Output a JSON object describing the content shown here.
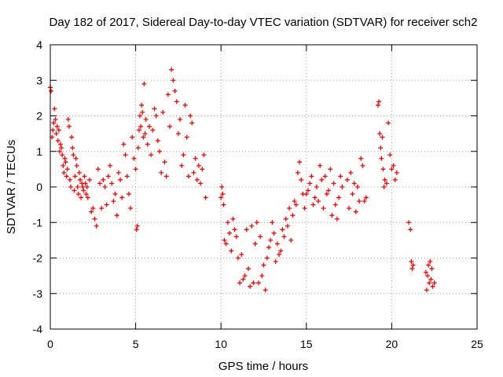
{
  "chart_data": {
    "type": "scatter",
    "title": "Day 182 of 2017, Sidereal Day-to-day VTEC variation (SDTVAR) for receiver sch2",
    "xlabel": "GPS time / hours",
    "ylabel": "SDTVAR / TECUs",
    "xlim": [
      0,
      25
    ],
    "ylim": [
      -4,
      4
    ],
    "x_ticks": [
      "0",
      "5",
      "10",
      "15",
      "20",
      "25"
    ],
    "y_ticks": [
      "4",
      "3",
      "2",
      "1",
      "0",
      "-1",
      "-2",
      "-3",
      "-4"
    ],
    "grid": true,
    "marker": "plus",
    "color": "#ff0000",
    "series": [
      {
        "name": "sch2",
        "x": [
          0.0,
          0.05,
          0.1,
          0.15,
          0.2,
          0.25,
          0.3,
          0.35,
          0.4,
          0.45,
          0.5,
          0.55,
          0.6,
          0.65,
          0.7,
          0.75,
          0.8,
          0.85,
          0.9,
          0.95,
          1.0,
          1.05,
          1.1,
          1.15,
          1.2,
          1.25,
          1.3,
          1.35,
          1.4,
          1.45,
          1.5,
          1.55,
          1.6,
          1.65,
          1.7,
          1.75,
          1.8,
          1.85,
          1.9,
          1.95,
          2.0,
          2.05,
          2.1,
          2.15,
          2.2,
          2.3,
          2.4,
          2.5,
          2.6,
          2.7,
          2.8,
          2.9,
          3.0,
          3.1,
          3.2,
          3.3,
          3.4,
          3.5,
          3.6,
          3.7,
          3.8,
          3.9,
          4.0,
          4.1,
          4.2,
          4.3,
          4.4,
          4.5,
          4.6,
          4.7,
          4.8,
          4.9,
          5.0,
          5.05,
          5.1,
          5.15,
          5.2,
          5.25,
          5.3,
          5.35,
          5.4,
          5.45,
          5.5,
          5.55,
          5.6,
          5.7,
          5.8,
          5.9,
          6.0,
          6.1,
          6.2,
          6.3,
          6.4,
          6.5,
          6.6,
          6.7,
          6.8,
          6.9,
          7.0,
          7.1,
          7.2,
          7.3,
          7.4,
          7.5,
          7.6,
          7.7,
          7.8,
          7.9,
          8.0,
          8.1,
          8.2,
          8.3,
          8.4,
          8.5,
          8.6,
          8.7,
          8.8,
          8.9,
          9.0,
          9.1,
          10.0,
          10.05,
          10.1,
          10.15,
          10.2,
          10.3,
          10.4,
          10.5,
          10.6,
          10.7,
          10.8,
          10.9,
          11.0,
          11.1,
          11.2,
          11.3,
          11.4,
          11.5,
          11.6,
          11.7,
          11.8,
          11.9,
          12.0,
          12.1,
          12.2,
          12.3,
          12.4,
          12.5,
          12.6,
          12.7,
          12.8,
          12.9,
          13.0,
          13.1,
          13.2,
          13.3,
          13.4,
          13.5,
          13.6,
          13.7,
          13.8,
          13.9,
          14.0,
          14.1,
          14.2,
          14.3,
          14.4,
          14.5,
          14.6,
          14.7,
          14.8,
          14.9,
          15.0,
          15.1,
          15.2,
          15.3,
          15.4,
          15.5,
          15.6,
          15.7,
          15.8,
          15.9,
          16.0,
          16.1,
          16.2,
          16.3,
          16.4,
          16.5,
          16.6,
          16.7,
          16.8,
          16.9,
          17.0,
          17.1,
          17.4,
          17.5,
          17.6,
          17.7,
          17.8,
          17.9,
          18.0,
          18.1,
          18.2,
          18.3,
          18.4,
          18.5,
          19.2,
          19.25,
          19.3,
          19.35,
          19.4,
          19.45,
          19.5,
          19.55,
          19.6,
          19.7,
          19.8,
          19.9,
          20.0,
          20.1,
          20.2,
          20.3,
          21.0,
          21.1,
          21.15,
          21.2,
          21.25,
          22.0,
          22.05,
          22.1,
          22.15,
          22.2,
          22.25,
          22.3,
          22.35,
          22.4,
          22.5
        ],
        "y": [
          2.8,
          2.7,
          1.4,
          1.6,
          1.8,
          2.2,
          1.9,
          1.5,
          1.7,
          1.3,
          1.6,
          1.0,
          1.2,
          1.1,
          0.9,
          0.6,
          0.4,
          0.8,
          0.7,
          0.3,
          0.5,
          1.9,
          1.7,
          0.2,
          0.0,
          1.4,
          1.1,
          0.9,
          -0.1,
          0.3,
          0.8,
          0.6,
          0.0,
          -0.2,
          0.4,
          0.2,
          -0.3,
          0.1,
          0.0,
          -0.1,
          0.3,
          0.1,
          -0.2,
          0.0,
          -0.3,
          0.2,
          -0.7,
          -0.6,
          -0.9,
          -1.1,
          0.5,
          0.1,
          -0.6,
          0.2,
          0.0,
          -0.5,
          0.3,
          0.6,
          0.1,
          -0.4,
          -0.2,
          -0.8,
          0.4,
          0.2,
          -0.3,
          1.2,
          0.9,
          0.3,
          -0.2,
          -0.6,
          1.4,
          0.8,
          0.5,
          -1.2,
          -1.1,
          1.1,
          1.6,
          2.0,
          1.7,
          2.3,
          2.1,
          1.4,
          2.9,
          1.5,
          1.9,
          1.2,
          1.7,
          0.9,
          1.6,
          2.2,
          2.0,
          1.3,
          1.0,
          0.4,
          2.1,
          0.7,
          0.3,
          2.6,
          1.7,
          3.3,
          3.0,
          2.7,
          2.4,
          1.5,
          1.9,
          0.6,
          0.9,
          2.3,
          1.4,
          0.3,
          2.0,
          1.8,
          0.4,
          0.8,
          0.2,
          0.6,
          0.1,
          0.5,
          0.9,
          -0.3,
          -0.3,
          0.0,
          -0.2,
          -0.5,
          -1.5,
          -1.6,
          -1.0,
          -1.3,
          -1.8,
          -0.9,
          -1.2,
          -1.4,
          -2.0,
          -2.7,
          -1.9,
          -2.6,
          -2.5,
          -1.2,
          -2.3,
          -2.8,
          -1.1,
          -2.7,
          -1.6,
          -1.0,
          -2.7,
          -1.4,
          -2.5,
          -2.2,
          -2.9,
          -2.0,
          -1.7,
          -1.5,
          -1.0,
          -1.3,
          -2.1,
          -1.6,
          -1.9,
          -1.8,
          -1.2,
          -1.4,
          -0.9,
          -1.1,
          -0.6,
          -1.5,
          -0.8,
          -0.4,
          -0.5,
          0.4,
          0.7,
          0.2,
          -0.2,
          -0.6,
          -0.2,
          -0.1,
          0.1,
          0.3,
          -0.5,
          -0.3,
          0.0,
          -0.4,
          0.6,
          0.2,
          -0.6,
          0.3,
          -0.2,
          -0.1,
          0.5,
          -0.8,
          0.1,
          -0.5,
          -0.9,
          -0.3,
          0.3,
          0.0,
          0.2,
          -0.6,
          0.4,
          -0.2,
          0.1,
          -0.7,
          0.0,
          -0.4,
          0.8,
          0.6,
          -0.4,
          -0.3,
          2.3,
          2.4,
          1.5,
          1.1,
          0.8,
          1.4,
          0.5,
          0.0,
          0.2,
          0.1,
          1.8,
          0.9,
          0.5,
          0.6,
          0.2,
          0.4,
          -1.0,
          -1.2,
          -2.1,
          -2.3,
          -2.2,
          -2.4,
          -2.9,
          -2.5,
          -2.2,
          -2.7,
          -2.1,
          -2.6,
          -2.3,
          -2.8,
          -2.7
        ]
      }
    ]
  }
}
